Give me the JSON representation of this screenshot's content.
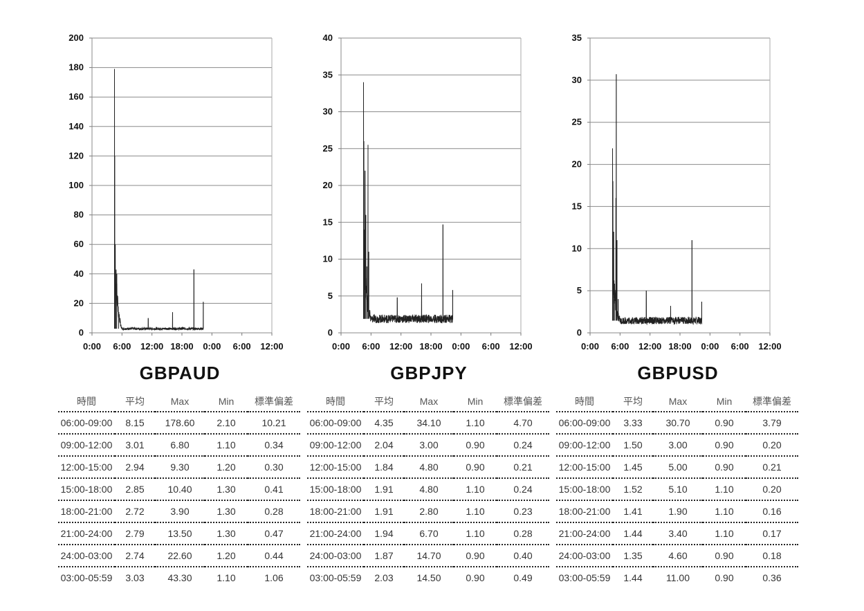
{
  "table_headers": [
    "時間",
    "平均",
    "Max",
    "Min",
    "標準偏差"
  ],
  "chart_data": [
    {
      "type": "line",
      "pair": "GBPAUD",
      "title": "GBPAUD",
      "ylim": [
        0,
        200
      ],
      "yticks": [
        "0",
        "20",
        "40",
        "60",
        "80",
        "100",
        "120",
        "140",
        "160",
        "180",
        "200"
      ],
      "xticks": [
        "0:00",
        "6:00",
        "12:00",
        "18:00",
        "0:00",
        "6:00",
        "12:00"
      ],
      "xlim_hours": [
        0,
        48
      ],
      "grid": true,
      "color": "#222222",
      "spikes": [
        [
          6.0,
          179
        ],
        [
          6.05,
          120
        ],
        [
          6.2,
          60
        ],
        [
          6.4,
          25
        ],
        [
          6.6,
          40
        ],
        [
          7.1,
          10
        ],
        [
          15.0,
          10
        ],
        [
          21.5,
          14
        ],
        [
          27.2,
          43
        ],
        [
          29.7,
          21
        ]
      ],
      "baseline": 2.8,
      "stats": [
        {
          "time": "06:00-09:00",
          "avg": "8.15",
          "max": "178.60",
          "min": "2.10",
          "sd": "10.21"
        },
        {
          "time": "09:00-12:00",
          "avg": "3.01",
          "max": "6.80",
          "min": "1.10",
          "sd": "0.34"
        },
        {
          "time": "12:00-15:00",
          "avg": "2.94",
          "max": "9.30",
          "min": "1.20",
          "sd": "0.30"
        },
        {
          "time": "15:00-18:00",
          "avg": "2.85",
          "max": "10.40",
          "min": "1.30",
          "sd": "0.41"
        },
        {
          "time": "18:00-21:00",
          "avg": "2.72",
          "max": "3.90",
          "min": "1.30",
          "sd": "0.28"
        },
        {
          "time": "21:00-24:00",
          "avg": "2.79",
          "max": "13.50",
          "min": "1.30",
          "sd": "0.47"
        },
        {
          "time": "24:00-03:00",
          "avg": "2.74",
          "max": "22.60",
          "min": "1.20",
          "sd": "0.44"
        },
        {
          "time": "03:00-05:59",
          "avg": "3.03",
          "max": "43.30",
          "min": "1.10",
          "sd": "1.06"
        }
      ]
    },
    {
      "type": "line",
      "pair": "GBPJPY",
      "title": "GBPJPY",
      "ylim": [
        0,
        40
      ],
      "yticks": [
        "0",
        "5",
        "10",
        "15",
        "20",
        "25",
        "30",
        "35",
        "40"
      ],
      "xticks": [
        "0:00",
        "6:00",
        "12:00",
        "18:00",
        "0:00",
        "6:00",
        "12:00"
      ],
      "xlim_hours": [
        0,
        48
      ],
      "grid": true,
      "color": "#222222",
      "spikes": [
        [
          6.0,
          34
        ],
        [
          6.1,
          26
        ],
        [
          6.2,
          14
        ],
        [
          6.4,
          22
        ],
        [
          6.6,
          16
        ],
        [
          6.9,
          9
        ],
        [
          7.2,
          25.5
        ],
        [
          7.4,
          11
        ],
        [
          15.0,
          4.8
        ],
        [
          21.5,
          6.7
        ],
        [
          27.2,
          14.7
        ],
        [
          29.8,
          5.8
        ]
      ],
      "baseline": 1.9,
      "stats": [
        {
          "time": "06:00-09:00",
          "avg": "4.35",
          "max": "34.10",
          "min": "1.10",
          "sd": "4.70"
        },
        {
          "time": "09:00-12:00",
          "avg": "2.04",
          "max": "3.00",
          "min": "0.90",
          "sd": "0.24"
        },
        {
          "time": "12:00-15:00",
          "avg": "1.84",
          "max": "4.80",
          "min": "0.90",
          "sd": "0.21"
        },
        {
          "time": "15:00-18:00",
          "avg": "1.91",
          "max": "4.80",
          "min": "1.10",
          "sd": "0.24"
        },
        {
          "time": "18:00-21:00",
          "avg": "1.91",
          "max": "2.80",
          "min": "1.10",
          "sd": "0.23"
        },
        {
          "time": "21:00-24:00",
          "avg": "1.94",
          "max": "6.70",
          "min": "1.10",
          "sd": "0.28"
        },
        {
          "time": "24:00-03:00",
          "avg": "1.87",
          "max": "14.70",
          "min": "0.90",
          "sd": "0.40"
        },
        {
          "time": "03:00-05:59",
          "avg": "2.03",
          "max": "14.50",
          "min": "0.90",
          "sd": "0.49"
        }
      ]
    },
    {
      "type": "line",
      "pair": "GBPUSD",
      "title": "GBPUSD",
      "ylim": [
        0,
        35
      ],
      "yticks": [
        "0",
        "5",
        "10",
        "15",
        "20",
        "25",
        "30",
        "35"
      ],
      "xticks": [
        "0:00",
        "6:00",
        "12:00",
        "18:00",
        "0:00",
        "6:00",
        "12:00"
      ],
      "xlim_hours": [
        0,
        48
      ],
      "grid": true,
      "color": "#222222",
      "spikes": [
        [
          6.0,
          21.9
        ],
        [
          6.1,
          18
        ],
        [
          6.3,
          12
        ],
        [
          6.5,
          4
        ],
        [
          6.9,
          16
        ],
        [
          7.0,
          30.7
        ],
        [
          7.2,
          11
        ],
        [
          7.5,
          4
        ],
        [
          15.0,
          5.0
        ],
        [
          21.5,
          3.2
        ],
        [
          27.2,
          11
        ],
        [
          29.8,
          3.7
        ]
      ],
      "baseline": 1.45,
      "stats": [
        {
          "time": "06:00-09:00",
          "avg": "3.33",
          "max": "30.70",
          "min": "0.90",
          "sd": "3.79"
        },
        {
          "time": "09:00-12:00",
          "avg": "1.50",
          "max": "3.00",
          "min": "0.90",
          "sd": "0.20"
        },
        {
          "time": "12:00-15:00",
          "avg": "1.45",
          "max": "5.00",
          "min": "0.90",
          "sd": "0.21"
        },
        {
          "time": "15:00-18:00",
          "avg": "1.52",
          "max": "5.10",
          "min": "1.10",
          "sd": "0.20"
        },
        {
          "time": "18:00-21:00",
          "avg": "1.41",
          "max": "1.90",
          "min": "1.10",
          "sd": "0.16"
        },
        {
          "time": "21:00-24:00",
          "avg": "1.44",
          "max": "3.40",
          "min": "1.10",
          "sd": "0.17"
        },
        {
          "time": "24:00-03:00",
          "avg": "1.35",
          "max": "4.60",
          "min": "0.90",
          "sd": "0.18"
        },
        {
          "time": "03:00-05:59",
          "avg": "1.44",
          "max": "11.00",
          "min": "0.90",
          "sd": "0.36"
        }
      ]
    }
  ]
}
